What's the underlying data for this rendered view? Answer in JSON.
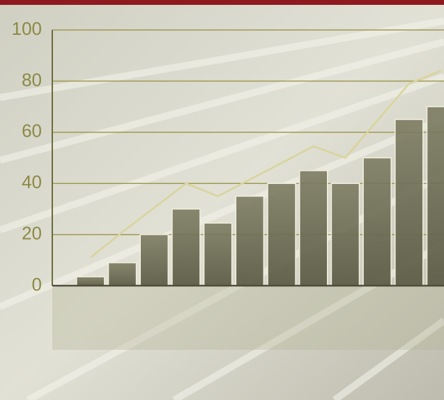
{
  "chart_data": {
    "type": "bar",
    "categories": [
      null,
      null,
      null,
      null,
      null,
      null,
      null,
      null,
      null,
      null,
      null,
      null
    ],
    "series": [
      {
        "type": "bar",
        "color": "#6f6e55",
        "values": [
          3.5,
          9,
          20,
          30,
          24.5,
          35,
          40,
          45,
          40,
          50,
          65,
          70
        ]
      },
      {
        "type": "line",
        "color": "#d8d49a",
        "values": [
          11,
          21,
          30.5,
          40,
          35,
          41.5,
          48,
          54.5,
          50,
          64.5,
          79,
          84
        ]
      }
    ],
    "ylim": [
      0,
      100
    ],
    "yticks": [
      0,
      20,
      40,
      60,
      80,
      100
    ],
    "grid": true
  }
}
